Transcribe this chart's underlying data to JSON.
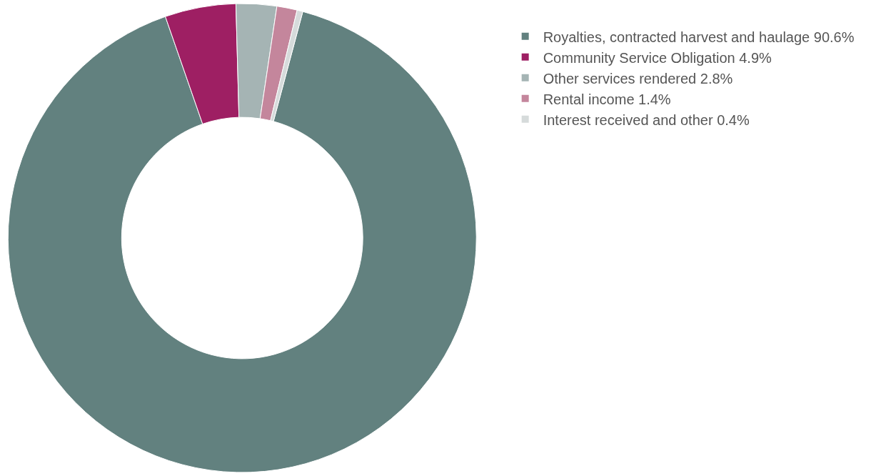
{
  "chart_data": {
    "type": "donut",
    "categories": [
      "Royalties, contracted harvest and haulage 90.6%",
      "Community Service Obligation 4.9%",
      "Other services rendered 2.8%",
      "Rental income 1.4%",
      "Interest received and other 0.4%"
    ],
    "values": [
      90.6,
      4.9,
      2.8,
      1.4,
      0.4
    ],
    "colors": [
      "#62817f",
      "#9e1f63",
      "#a5b4b4",
      "#c4869c",
      "#d6dbdb"
    ],
    "legend": "top right"
  }
}
